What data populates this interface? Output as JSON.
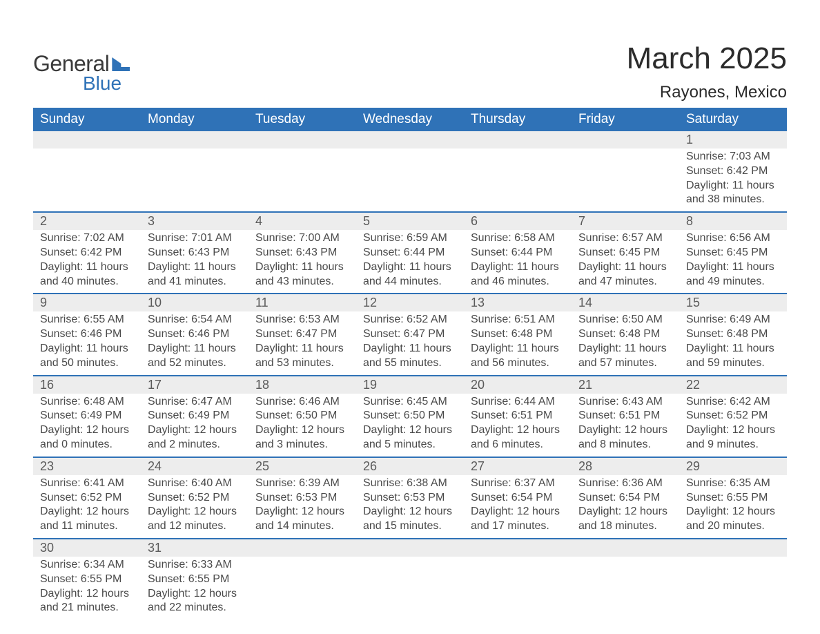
{
  "logo": {
    "text1": "General",
    "text2": "Blue",
    "shape_color": "#2f72b7"
  },
  "title": "March 2025",
  "subtitle": "Rayones, Mexico",
  "colors": {
    "header_bg": "#2f72b7",
    "header_text": "#ffffff",
    "daynum_bg": "#ededed",
    "border": "#2f72b7",
    "body_text": "#4a4a4a"
  },
  "type": "table",
  "day_headers": [
    "Sunday",
    "Monday",
    "Tuesday",
    "Wednesday",
    "Thursday",
    "Friday",
    "Saturday"
  ],
  "weeks": [
    {
      "nums": [
        "",
        "",
        "",
        "",
        "",
        "",
        "1"
      ],
      "details": [
        "",
        "",
        "",
        "",
        "",
        "",
        "Sunrise: 7:03 AM\nSunset: 6:42 PM\nDaylight: 11 hours and 38 minutes."
      ]
    },
    {
      "nums": [
        "2",
        "3",
        "4",
        "5",
        "6",
        "7",
        "8"
      ],
      "details": [
        "Sunrise: 7:02 AM\nSunset: 6:42 PM\nDaylight: 11 hours and 40 minutes.",
        "Sunrise: 7:01 AM\nSunset: 6:43 PM\nDaylight: 11 hours and 41 minutes.",
        "Sunrise: 7:00 AM\nSunset: 6:43 PM\nDaylight: 11 hours and 43 minutes.",
        "Sunrise: 6:59 AM\nSunset: 6:44 PM\nDaylight: 11 hours and 44 minutes.",
        "Sunrise: 6:58 AM\nSunset: 6:44 PM\nDaylight: 11 hours and 46 minutes.",
        "Sunrise: 6:57 AM\nSunset: 6:45 PM\nDaylight: 11 hours and 47 minutes.",
        "Sunrise: 6:56 AM\nSunset: 6:45 PM\nDaylight: 11 hours and 49 minutes."
      ]
    },
    {
      "nums": [
        "9",
        "10",
        "11",
        "12",
        "13",
        "14",
        "15"
      ],
      "details": [
        "Sunrise: 6:55 AM\nSunset: 6:46 PM\nDaylight: 11 hours and 50 minutes.",
        "Sunrise: 6:54 AM\nSunset: 6:46 PM\nDaylight: 11 hours and 52 minutes.",
        "Sunrise: 6:53 AM\nSunset: 6:47 PM\nDaylight: 11 hours and 53 minutes.",
        "Sunrise: 6:52 AM\nSunset: 6:47 PM\nDaylight: 11 hours and 55 minutes.",
        "Sunrise: 6:51 AM\nSunset: 6:48 PM\nDaylight: 11 hours and 56 minutes.",
        "Sunrise: 6:50 AM\nSunset: 6:48 PM\nDaylight: 11 hours and 57 minutes.",
        "Sunrise: 6:49 AM\nSunset: 6:48 PM\nDaylight: 11 hours and 59 minutes."
      ]
    },
    {
      "nums": [
        "16",
        "17",
        "18",
        "19",
        "20",
        "21",
        "22"
      ],
      "details": [
        "Sunrise: 6:48 AM\nSunset: 6:49 PM\nDaylight: 12 hours and 0 minutes.",
        "Sunrise: 6:47 AM\nSunset: 6:49 PM\nDaylight: 12 hours and 2 minutes.",
        "Sunrise: 6:46 AM\nSunset: 6:50 PM\nDaylight: 12 hours and 3 minutes.",
        "Sunrise: 6:45 AM\nSunset: 6:50 PM\nDaylight: 12 hours and 5 minutes.",
        "Sunrise: 6:44 AM\nSunset: 6:51 PM\nDaylight: 12 hours and 6 minutes.",
        "Sunrise: 6:43 AM\nSunset: 6:51 PM\nDaylight: 12 hours and 8 minutes.",
        "Sunrise: 6:42 AM\nSunset: 6:52 PM\nDaylight: 12 hours and 9 minutes."
      ]
    },
    {
      "nums": [
        "23",
        "24",
        "25",
        "26",
        "27",
        "28",
        "29"
      ],
      "details": [
        "Sunrise: 6:41 AM\nSunset: 6:52 PM\nDaylight: 12 hours and 11 minutes.",
        "Sunrise: 6:40 AM\nSunset: 6:52 PM\nDaylight: 12 hours and 12 minutes.",
        "Sunrise: 6:39 AM\nSunset: 6:53 PM\nDaylight: 12 hours and 14 minutes.",
        "Sunrise: 6:38 AM\nSunset: 6:53 PM\nDaylight: 12 hours and 15 minutes.",
        "Sunrise: 6:37 AM\nSunset: 6:54 PM\nDaylight: 12 hours and 17 minutes.",
        "Sunrise: 6:36 AM\nSunset: 6:54 PM\nDaylight: 12 hours and 18 minutes.",
        "Sunrise: 6:35 AM\nSunset: 6:55 PM\nDaylight: 12 hours and 20 minutes."
      ]
    },
    {
      "nums": [
        "30",
        "31",
        "",
        "",
        "",
        "",
        ""
      ],
      "details": [
        "Sunrise: 6:34 AM\nSunset: 6:55 PM\nDaylight: 12 hours and 21 minutes.",
        "Sunrise: 6:33 AM\nSunset: 6:55 PM\nDaylight: 12 hours and 22 minutes.",
        "",
        "",
        "",
        "",
        ""
      ]
    }
  ]
}
